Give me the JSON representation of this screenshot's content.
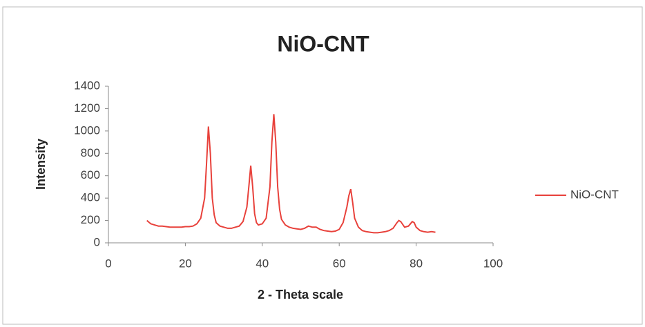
{
  "chart_data": {
    "type": "line",
    "title": "NiO-CNT",
    "x_label": "2 - Theta scale",
    "y_label": "Intensity",
    "x": [
      10,
      11,
      12,
      13,
      14,
      15,
      16,
      17,
      18,
      19,
      20,
      21,
      22,
      23,
      24,
      25,
      25.5,
      26,
      26.5,
      27,
      27.5,
      28,
      29,
      30,
      31,
      32,
      33,
      34,
      35,
      36,
      36.5,
      37,
      37.5,
      38,
      38.5,
      39,
      40,
      41,
      42,
      42.5,
      43,
      43.5,
      44,
      44.5,
      45,
      46,
      47,
      48,
      49,
      50,
      51,
      52,
      53,
      54,
      55,
      56,
      57,
      58,
      59,
      60,
      61,
      62,
      62.5,
      63,
      63.5,
      64,
      65,
      66,
      67,
      68,
      69,
      70,
      71,
      72,
      73,
      74,
      75,
      75.5,
      76,
      77,
      78,
      79,
      79.5,
      80,
      81,
      82,
      83,
      84,
      85
    ],
    "series": [
      {
        "name": "NiO-CNT",
        "color": "#e8413b",
        "values": [
          200,
          170,
          160,
          150,
          150,
          145,
          140,
          140,
          140,
          140,
          145,
          145,
          150,
          170,
          220,
          400,
          700,
          1040,
          800,
          400,
          250,
          180,
          150,
          140,
          130,
          130,
          140,
          150,
          190,
          320,
          500,
          690,
          500,
          260,
          180,
          160,
          170,
          220,
          500,
          900,
          1150,
          900,
          500,
          300,
          210,
          160,
          140,
          130,
          125,
          120,
          130,
          150,
          140,
          140,
          120,
          110,
          105,
          100,
          105,
          120,
          180,
          320,
          420,
          480,
          360,
          220,
          140,
          110,
          100,
          95,
          90,
          90,
          95,
          100,
          110,
          130,
          180,
          200,
          190,
          140,
          150,
          190,
          180,
          140,
          110,
          100,
          95,
          100,
          95
        ]
      }
    ],
    "xlim": [
      0,
      100
    ],
    "xticks": [
      0,
      20,
      40,
      60,
      80,
      100
    ],
    "ylim": [
      0,
      1400
    ],
    "yticks": [
      0,
      200,
      400,
      600,
      800,
      1000,
      1200,
      1400
    ],
    "legend": "right"
  }
}
